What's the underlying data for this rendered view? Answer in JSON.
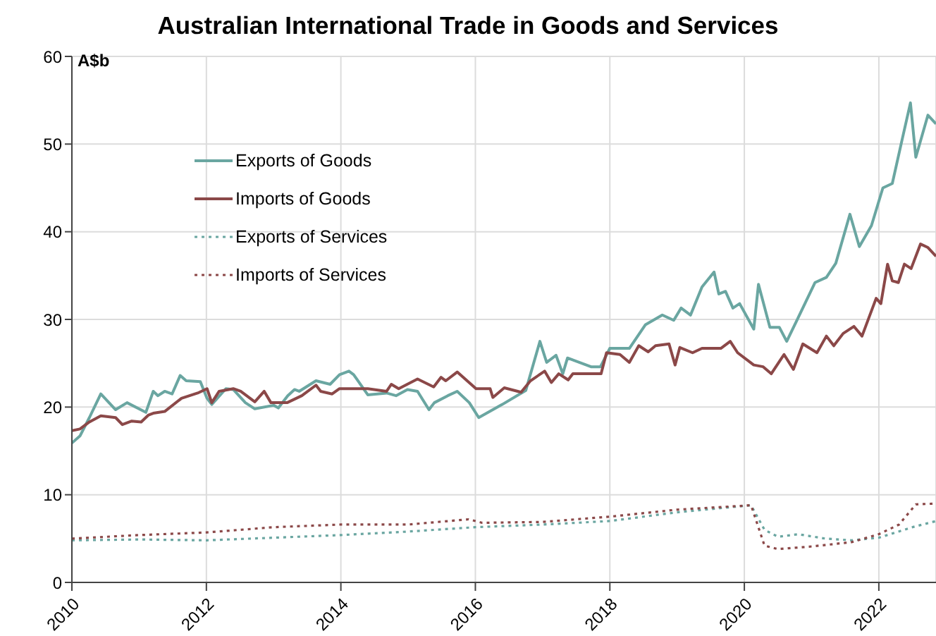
{
  "chart_data": {
    "type": "line",
    "title": "Australian International Trade in Goods and Services",
    "ylabel": "A$b",
    "xlim": [
      2010,
      2022.85
    ],
    "xticks": [
      2010,
      2012,
      2014,
      2016,
      2018,
      2020,
      2022
    ],
    "ylim": [
      0,
      60
    ],
    "yticks": [
      0,
      10,
      20,
      30,
      40,
      50,
      60
    ],
    "grid": true,
    "legend": "top left",
    "series": [
      {
        "name": "Exports of Goods",
        "color": "#6aa6a1",
        "line_style": "solid",
        "x": [
          2010,
          2010.12,
          2010.26,
          2010.43,
          2010.65,
          2010.82,
          2011.1,
          2011.21,
          2011.28,
          2011.38,
          2011.49,
          2011.61,
          2011.7,
          2011.91,
          2012.01,
          2012.08,
          2012.29,
          2012.4,
          2012.58,
          2012.72,
          2013.0,
          2013.07,
          2013.21,
          2013.31,
          2013.38,
          2013.63,
          2013.84,
          2013.98,
          2014.12,
          2014.19,
          2014.4,
          2014.68,
          2014.82,
          2014.99,
          2015.14,
          2015.31,
          2015.39,
          2015.59,
          2015.73,
          2015.91,
          2016.05,
          2016.4,
          2016.75,
          2016.96,
          2017.06,
          2017.2,
          2017.3,
          2017.37,
          2017.72,
          2017.86,
          2018.0,
          2018.29,
          2018.53,
          2018.78,
          2018.95,
          2019.06,
          2019.2,
          2019.37,
          2019.55,
          2019.62,
          2019.72,
          2019.83,
          2019.93,
          2020.14,
          2020.21,
          2020.38,
          2020.52,
          2020.63,
          2020.8,
          2021.05,
          2021.22,
          2021.36,
          2021.57,
          2021.71,
          2021.89,
          2022.06,
          2022.2,
          2022.34,
          2022.47,
          2022.55,
          2022.73,
          2022.85
        ],
        "values": [
          15.9,
          16.7,
          18.8,
          21.5,
          19.7,
          20.5,
          19.4,
          21.8,
          21.3,
          21.8,
          21.5,
          23.6,
          23.0,
          22.9,
          21.0,
          20.3,
          22.1,
          22.0,
          20.5,
          19.8,
          20.2,
          19.9,
          21.3,
          22.0,
          21.8,
          23.0,
          22.6,
          23.7,
          24.1,
          23.7,
          21.4,
          21.6,
          21.3,
          22.0,
          21.8,
          19.7,
          20.5,
          21.3,
          21.8,
          20.5,
          18.8,
          20.3,
          21.9,
          27.5,
          25.1,
          25.9,
          23.8,
          25.6,
          24.6,
          24.6,
          26.7,
          26.7,
          29.4,
          30.5,
          29.9,
          31.3,
          30.5,
          33.7,
          35.4,
          32.9,
          33.2,
          31.3,
          31.8,
          28.9,
          34.0,
          29.1,
          29.1,
          27.5,
          30.2,
          34.2,
          34.8,
          36.4,
          42.0,
          38.3,
          40.7,
          45.0,
          45.5,
          50.3,
          54.7,
          48.5,
          53.3,
          52.3
        ]
      },
      {
        "name": "Imports of Goods",
        "color": "#8b4848",
        "line_style": "solid",
        "x": [
          2010,
          2010.12,
          2010.26,
          2010.43,
          2010.65,
          2010.75,
          2010.89,
          2011.03,
          2011.14,
          2011.21,
          2011.38,
          2011.63,
          2011.87,
          2012.01,
          2012.08,
          2012.19,
          2012.4,
          2012.51,
          2012.72,
          2012.86,
          2012.96,
          2013.2,
          2013.42,
          2013.63,
          2013.7,
          2013.87,
          2013.98,
          2014.4,
          2014.68,
          2014.75,
          2014.86,
          2015.14,
          2015.38,
          2015.49,
          2015.56,
          2015.73,
          2016.01,
          2016.22,
          2016.26,
          2016.43,
          2016.68,
          2016.82,
          2017.03,
          2017.13,
          2017.24,
          2017.38,
          2017.45,
          2017.87,
          2017.95,
          2018.15,
          2018.29,
          2018.43,
          2018.57,
          2018.68,
          2018.88,
          2018.97,
          2019.04,
          2019.23,
          2019.37,
          2019.65,
          2019.79,
          2019.9,
          2020.14,
          2020.28,
          2020.4,
          2020.59,
          2020.73,
          2020.87,
          2021.08,
          2021.22,
          2021.33,
          2021.47,
          2021.63,
          2021.75,
          2021.96,
          2022.03,
          2022.13,
          2022.2,
          2022.29,
          2022.38,
          2022.48,
          2022.62,
          2022.73,
          2022.85
        ],
        "values": [
          17.3,
          17.5,
          18.3,
          19.0,
          18.8,
          18.0,
          18.4,
          18.3,
          19.1,
          19.3,
          19.5,
          21.0,
          21.6,
          22.1,
          20.5,
          21.8,
          22.1,
          21.8,
          20.6,
          21.8,
          20.5,
          20.5,
          21.3,
          22.5,
          21.8,
          21.5,
          22.1,
          22.1,
          21.8,
          22.6,
          22.1,
          23.2,
          22.3,
          23.4,
          23.0,
          24.0,
          22.1,
          22.1,
          21.1,
          22.2,
          21.7,
          23.0,
          24.1,
          22.8,
          23.8,
          23.1,
          23.8,
          23.8,
          26.2,
          26.0,
          25.1,
          27.0,
          26.3,
          27.0,
          27.2,
          24.8,
          26.8,
          26.2,
          26.7,
          26.7,
          27.5,
          26.2,
          24.8,
          24.6,
          23.8,
          26.0,
          24.3,
          27.2,
          26.2,
          28.1,
          27.0,
          28.4,
          29.2,
          28.1,
          32.4,
          31.8,
          36.3,
          34.4,
          34.2,
          36.3,
          35.8,
          38.6,
          38.2,
          37.2
        ]
      },
      {
        "name": "Exports of Services",
        "color": "#6aa6a1",
        "line_style": "dotted",
        "x": [
          2010,
          2011,
          2012,
          2013,
          2014,
          2015,
          2016,
          2017,
          2018,
          2019,
          2020.1,
          2020.3,
          2020.5,
          2020.8,
          2021.2,
          2021.6,
          2022,
          2022.5,
          2022.85
        ],
        "values": [
          4.8,
          4.9,
          4.8,
          5.1,
          5.4,
          5.8,
          6.3,
          6.6,
          7.0,
          8.0,
          8.8,
          6.0,
          5.2,
          5.5,
          5.0,
          4.8,
          5.1,
          6.3,
          7.0
        ]
      },
      {
        "name": "Imports of Services",
        "color": "#8b4848",
        "line_style": "dotted",
        "x": [
          2010,
          2011,
          2012,
          2013,
          2014,
          2015,
          2015.9,
          2016.1,
          2017,
          2018,
          2019,
          2020.1,
          2020.3,
          2020.5,
          2021,
          2021.6,
          2022,
          2022.3,
          2022.55,
          2022.85
        ],
        "values": [
          5.0,
          5.4,
          5.7,
          6.3,
          6.6,
          6.6,
          7.2,
          6.8,
          6.9,
          7.5,
          8.3,
          8.8,
          4.2,
          3.8,
          4.1,
          4.6,
          5.5,
          6.6,
          8.9,
          9.0
        ]
      }
    ]
  }
}
